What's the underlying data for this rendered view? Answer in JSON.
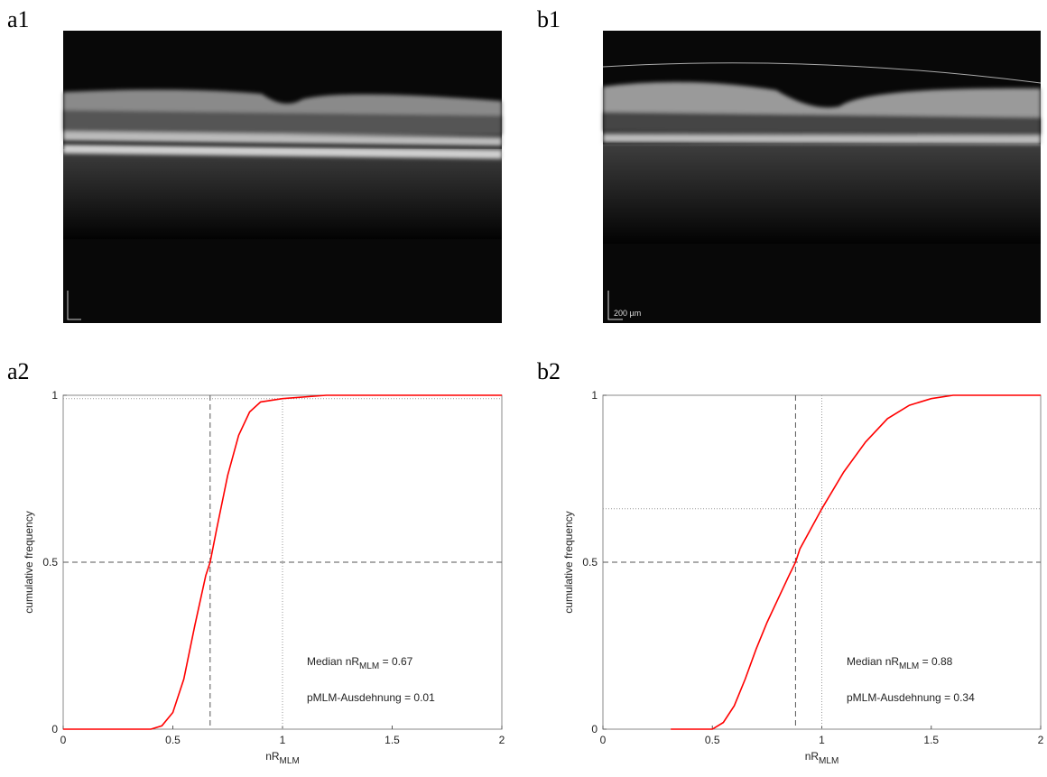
{
  "panel_labels": [
    "a1",
    "b1",
    "a2",
    "b2"
  ],
  "scale_bar": "200 µm",
  "chart_data": [
    {
      "type": "line",
      "y_label": "cumulative frequency",
      "x_label": {
        "main": "nR",
        "sub": "MLM"
      },
      "xlim": [
        0,
        2
      ],
      "ylim": [
        0,
        1
      ],
      "xticks": [
        0,
        0.5,
        1,
        1.5,
        2
      ],
      "yticks": [
        0,
        0.5,
        1
      ],
      "x": [
        0,
        0.4,
        0.45,
        0.5,
        0.55,
        0.6,
        0.65,
        0.67,
        0.7,
        0.75,
        0.8,
        0.85,
        0.9,
        1,
        1.2,
        1.5,
        2
      ],
      "series": [
        {
          "color": "#ff0000",
          "values": [
            0,
            0,
            0.01,
            0.05,
            0.15,
            0.31,
            0.46,
            0.5,
            0.6,
            0.76,
            0.88,
            0.95,
            0.98,
            0.99,
            1,
            1,
            1
          ]
        }
      ],
      "median_line": {
        "x": 0.67,
        "y": 0.5
      },
      "reference_line": {
        "x": 1,
        "y": 0.99
      },
      "annotations": [
        {
          "prefix": "Median nR",
          "sub": "MLM",
          "suffix": " = 0.67"
        },
        {
          "text": "pMLM-Ausdehnung = 0.01"
        }
      ]
    },
    {
      "type": "line",
      "y_label": "cumulative frequency",
      "x_label": {
        "main": "nR",
        "sub": "MLM"
      },
      "xlim": [
        0,
        2
      ],
      "ylim": [
        0,
        1
      ],
      "xticks": [
        0,
        0.5,
        1,
        1.5,
        2
      ],
      "yticks": [
        0,
        0.5,
        1
      ],
      "x": [
        0.31,
        0.5,
        0.55,
        0.6,
        0.65,
        0.7,
        0.75,
        0.8,
        0.85,
        0.88,
        0.9,
        1,
        1.1,
        1.2,
        1.3,
        1.4,
        1.5,
        1.6,
        2
      ],
      "series": [
        {
          "color": "#ff0000",
          "values": [
            0,
            0,
            0.02,
            0.07,
            0.15,
            0.24,
            0.32,
            0.39,
            0.46,
            0.5,
            0.54,
            0.66,
            0.77,
            0.86,
            0.93,
            0.97,
            0.99,
            1,
            1
          ]
        }
      ],
      "median_line": {
        "x": 0.88,
        "y": 0.5
      },
      "reference_line": {
        "x": 1,
        "y": 0.66
      },
      "annotations": [
        {
          "prefix": "Median nR",
          "sub": "MLM",
          "suffix": " = 0.88"
        },
        {
          "text": "pMLM-Ausdehnung = 0.34"
        }
      ]
    }
  ]
}
